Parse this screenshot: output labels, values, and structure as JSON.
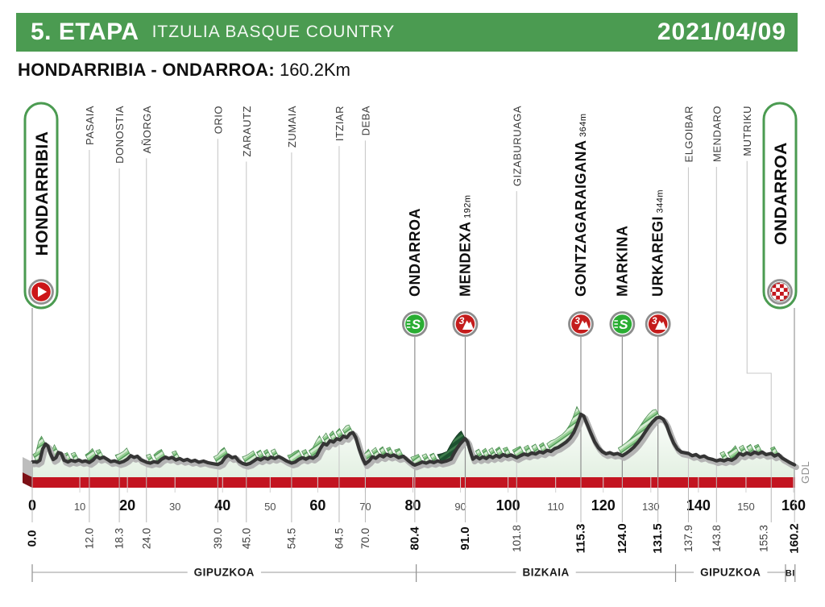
{
  "header": {
    "stage": "5. ETAPA",
    "race": "ITZULIA BASQUE COUNTRY",
    "date": "2021/04/09"
  },
  "route": {
    "title": "HONDARRIBIA - ONDARROA:",
    "distance": "160.2Km"
  },
  "watermark": "GDL",
  "colors": {
    "banner_green": "#4b9b51",
    "pill_green": "#4b9b51",
    "red_bar": "#c31420",
    "red_bar_side": "#7d1016",
    "outline": "#353535",
    "outline_shadow": "#b4b4b4",
    "sprint_green": "#2aad33",
    "climb_red": "#c41c1c",
    "start_red": "#cc1619",
    "fill_top": "#fcfefc",
    "fill_bottom": "#e3f0e2"
  },
  "chart_data": {
    "type": "area",
    "title": "Stage 5 elevation profile",
    "xlabel": "km",
    "x_range": [
      0,
      160.2
    ],
    "axis_km": [
      0,
      10,
      20,
      30,
      40,
      50,
      60,
      70,
      80,
      90,
      100,
      110,
      120,
      130,
      140,
      150,
      160
    ],
    "waypoints": [
      {
        "name": "HONDARRIBIA",
        "km": 0.0,
        "km_label": "0.0",
        "type": "start",
        "bold": true
      },
      {
        "name": "PASAIA",
        "km": 12.0,
        "km_label": "12.0",
        "type": "pass",
        "bold": false
      },
      {
        "name": "DONOSTIA",
        "km": 18.3,
        "km_label": "18.3",
        "type": "pass",
        "bold": false
      },
      {
        "name": "AÑORGA",
        "km": 24.0,
        "km_label": "24.0",
        "type": "pass",
        "bold": false
      },
      {
        "name": "ORIO",
        "km": 39.0,
        "km_label": "39.0",
        "type": "pass",
        "bold": false
      },
      {
        "name": "ZARAUTZ",
        "km": 45.0,
        "km_label": "45.0",
        "type": "pass",
        "bold": false
      },
      {
        "name": "ZUMAIA",
        "km": 54.5,
        "km_label": "54.5",
        "type": "pass",
        "bold": false
      },
      {
        "name": "ITZIAR",
        "km": 64.5,
        "km_label": "64.5",
        "type": "pass",
        "bold": false
      },
      {
        "name": "DEBA",
        "km": 70.0,
        "km_label": "70.0",
        "type": "pass",
        "bold": false
      },
      {
        "name": "ONDARROA",
        "km": 80.4,
        "km_label": "80.4",
        "type": "sprint",
        "bold": true
      },
      {
        "name": "MENDEXA",
        "km": 91.0,
        "km_label": "91.0",
        "elevation_label": "192m",
        "type": "climb3",
        "bold": true
      },
      {
        "name": "GIZABURUAGA",
        "km": 101.8,
        "km_label": "101.8",
        "type": "pass",
        "bold": false
      },
      {
        "name": "GONTZAGARAIGANA",
        "km": 115.3,
        "km_label": "115.3",
        "elevation_label": "364m",
        "type": "climb3",
        "bold": true
      },
      {
        "name": "MARKINA",
        "km": 124.0,
        "km_label": "124.0",
        "type": "sprint",
        "bold": true
      },
      {
        "name": "URKAREGI",
        "km": 131.5,
        "km_label": "131.5",
        "elevation_label": "344m",
        "type": "climb3",
        "bold": true
      },
      {
        "name": "ELGOIBAR",
        "km": 137.9,
        "km_label": "137.9",
        "type": "pass",
        "bold": false
      },
      {
        "name": "MENDARO",
        "km": 143.8,
        "km_label": "143.8",
        "type": "pass",
        "bold": false
      },
      {
        "name": "MUTRIKU",
        "km": 155.3,
        "km_label": "155.3",
        "type": "pass",
        "bold": false,
        "label_jog": true
      },
      {
        "name": "ONDARROA",
        "km": 160.2,
        "km_label": "160.2",
        "type": "finish",
        "bold": true
      }
    ],
    "regions": [
      {
        "label": "GIPUZKOA",
        "from_km": 0.0,
        "to_km": 80.7
      },
      {
        "label": "BIZKAIA",
        "from_km": 80.7,
        "to_km": 135.2
      },
      {
        "label": "GIPUZKOA",
        "from_km": 135.2,
        "to_km": 158.3
      },
      {
        "label": "BI",
        "from_km": 158.3,
        "to_km": 160.3
      }
    ],
    "steep_segments": [
      [
        87.0,
        91.0
      ]
    ],
    "elevation_profile": [
      [
        0,
        28
      ],
      [
        0.5,
        30
      ],
      [
        1,
        26
      ],
      [
        1.6,
        40
      ],
      [
        2.2,
        120
      ],
      [
        2.8,
        155
      ],
      [
        3.3,
        140
      ],
      [
        3.8,
        90
      ],
      [
        4.4,
        45
      ],
      [
        5,
        58
      ],
      [
        5.5,
        95
      ],
      [
        6.1,
        88
      ],
      [
        6.7,
        40
      ],
      [
        7.5,
        28
      ],
      [
        8.2,
        40
      ],
      [
        9,
        32
      ],
      [
        9.8,
        42
      ],
      [
        10.5,
        30
      ],
      [
        11.2,
        36
      ],
      [
        12,
        24
      ],
      [
        12.8,
        42
      ],
      [
        13.5,
        68
      ],
      [
        14.2,
        52
      ],
      [
        15,
        62
      ],
      [
        15.8,
        46
      ],
      [
        16.5,
        30
      ],
      [
        17.3,
        36
      ],
      [
        18.3,
        22
      ],
      [
        19.2,
        32
      ],
      [
        20,
        48
      ],
      [
        20.7,
        72
      ],
      [
        21.4,
        60
      ],
      [
        22.1,
        68
      ],
      [
        22.8,
        44
      ],
      [
        23.5,
        34
      ],
      [
        24,
        26
      ],
      [
        24.8,
        20
      ],
      [
        25.6,
        30
      ],
      [
        26.4,
        24
      ],
      [
        27.2,
        48
      ],
      [
        28,
        62
      ],
      [
        28.7,
        52
      ],
      [
        29.4,
        60
      ],
      [
        30.2,
        42
      ],
      [
        31,
        52
      ],
      [
        31.8,
        38
      ],
      [
        32.6,
        46
      ],
      [
        33.4,
        32
      ],
      [
        34.2,
        40
      ],
      [
        35,
        26
      ],
      [
        36,
        34
      ],
      [
        37,
        22
      ],
      [
        38,
        16
      ],
      [
        39,
        10
      ],
      [
        39.8,
        24
      ],
      [
        40.5,
        58
      ],
      [
        41.2,
        76
      ],
      [
        42,
        58
      ],
      [
        42.7,
        64
      ],
      [
        43.4,
        34
      ],
      [
        44.2,
        18
      ],
      [
        45,
        10
      ],
      [
        45.8,
        18
      ],
      [
        46.6,
        36
      ],
      [
        47.3,
        52
      ],
      [
        48,
        42
      ],
      [
        48.8,
        58
      ],
      [
        49.5,
        48
      ],
      [
        50.2,
        62
      ],
      [
        51,
        52
      ],
      [
        51.8,
        66
      ],
      [
        52.6,
        52
      ],
      [
        53.4,
        36
      ],
      [
        54.5,
        20
      ],
      [
        55.3,
        28
      ],
      [
        56,
        46
      ],
      [
        56.8,
        58
      ],
      [
        57.5,
        48
      ],
      [
        58.3,
        62
      ],
      [
        59,
        54
      ],
      [
        59.8,
        74
      ],
      [
        60.5,
        120
      ],
      [
        61.2,
        158
      ],
      [
        61.9,
        148
      ],
      [
        62.6,
        178
      ],
      [
        63.3,
        168
      ],
      [
        64,
        192
      ],
      [
        64.7,
        184
      ],
      [
        65.4,
        210
      ],
      [
        66.1,
        200
      ],
      [
        66.8,
        228
      ],
      [
        67.4,
        235
      ],
      [
        68,
        200
      ],
      [
        68.7,
        120
      ],
      [
        69.4,
        55
      ],
      [
        70,
        14
      ],
      [
        70.8,
        36
      ],
      [
        71.5,
        64
      ],
      [
        72.2,
        54
      ],
      [
        73,
        76
      ],
      [
        73.8,
        64
      ],
      [
        74.5,
        82
      ],
      [
        75.3,
        68
      ],
      [
        76,
        78
      ],
      [
        77,
        58
      ],
      [
        78,
        68
      ],
      [
        79,
        38
      ],
      [
        80,
        12
      ],
      [
        80.4,
        6
      ],
      [
        81.2,
        16
      ],
      [
        82,
        28
      ],
      [
        82.8,
        20
      ],
      [
        83.6,
        32
      ],
      [
        84.4,
        24
      ],
      [
        85.2,
        36
      ],
      [
        86,
        26
      ],
      [
        87,
        34
      ],
      [
        88,
        48
      ],
      [
        88.6,
        85
      ],
      [
        89.3,
        125
      ],
      [
        90,
        158
      ],
      [
        90.6,
        180
      ],
      [
        91,
        192
      ],
      [
        91.5,
        168
      ],
      [
        92,
        110
      ],
      [
        92.6,
        48
      ],
      [
        93.3,
        66
      ],
      [
        94,
        50
      ],
      [
        94.7,
        64
      ],
      [
        95.4,
        52
      ],
      [
        96.1,
        70
      ],
      [
        96.8,
        58
      ],
      [
        97.5,
        74
      ],
      [
        98.2,
        62
      ],
      [
        99,
        80
      ],
      [
        99.8,
        68
      ],
      [
        100.6,
        78
      ],
      [
        101.8,
        58
      ],
      [
        102.6,
        72
      ],
      [
        103.4,
        84
      ],
      [
        104.2,
        76
      ],
      [
        105,
        92
      ],
      [
        105.8,
        84
      ],
      [
        106.6,
        100
      ],
      [
        107.4,
        92
      ],
      [
        108.2,
        110
      ],
      [
        109,
        102
      ],
      [
        109.8,
        122
      ],
      [
        110.6,
        132
      ],
      [
        111.4,
        150
      ],
      [
        112.2,
        168
      ],
      [
        113,
        195
      ],
      [
        113.8,
        235
      ],
      [
        114.5,
        290
      ],
      [
        115.3,
        364
      ],
      [
        115.9,
        352
      ],
      [
        116.6,
        295
      ],
      [
        117.4,
        230
      ],
      [
        118.2,
        170
      ],
      [
        119,
        128
      ],
      [
        119.8,
        100
      ],
      [
        120.6,
        86
      ],
      [
        121.4,
        94
      ],
      [
        122.2,
        82
      ],
      [
        123,
        88
      ],
      [
        124,
        72
      ],
      [
        124.8,
        88
      ],
      [
        125.6,
        108
      ],
      [
        126.4,
        132
      ],
      [
        127.2,
        162
      ],
      [
        128,
        198
      ],
      [
        128.8,
        238
      ],
      [
        129.6,
        278
      ],
      [
        130.4,
        312
      ],
      [
        131.2,
        338
      ],
      [
        131.9,
        344
      ],
      [
        132.6,
        330
      ],
      [
        133.3,
        290
      ],
      [
        134,
        225
      ],
      [
        134.8,
        160
      ],
      [
        135.6,
        118
      ],
      [
        136.4,
        98
      ],
      [
        137.9,
        88
      ],
      [
        138.7,
        72
      ],
      [
        139.5,
        80
      ],
      [
        140.3,
        62
      ],
      [
        141.2,
        70
      ],
      [
        142,
        54
      ],
      [
        143,
        46
      ],
      [
        143.8,
        36
      ],
      [
        144.6,
        44
      ],
      [
        145.4,
        36
      ],
      [
        146.2,
        48
      ],
      [
        147,
        40
      ],
      [
        147.8,
        56
      ],
      [
        148.6,
        88
      ],
      [
        149.4,
        76
      ],
      [
        150.2,
        92
      ],
      [
        151,
        80
      ],
      [
        151.8,
        98
      ],
      [
        152.6,
        86
      ],
      [
        153.4,
        98
      ],
      [
        154.2,
        80
      ],
      [
        155.3,
        88
      ],
      [
        156,
        70
      ],
      [
        156.8,
        82
      ],
      [
        157.6,
        55
      ],
      [
        158.4,
        40
      ],
      [
        159.2,
        24
      ],
      [
        160.2,
        8
      ]
    ]
  }
}
